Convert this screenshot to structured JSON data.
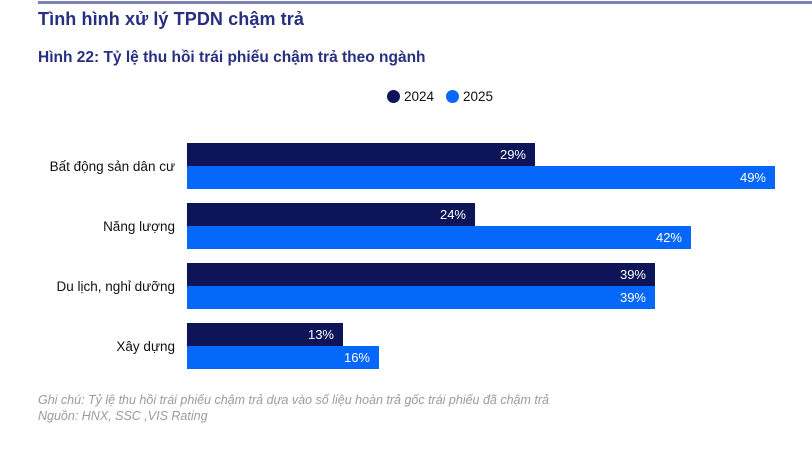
{
  "page": {
    "title": "Tình hình xử lý TPDN chậm trả",
    "figure_title": "Hình 22: Tỷ lệ thu hồi trái phiếu chậm trả theo ngành",
    "note": "Ghi chú: Tỷ lệ thu hồi trái phiếu chậm trả dựa vào số liệu hoàn trả gốc trái phiếu đã chậm trả",
    "source": "Nguồn: HNX, SSC ,VIS Rating"
  },
  "colors": {
    "heading": "#262f80",
    "top_rule": "#7e83b4",
    "series_2024": "#0d1457",
    "series_2025": "#0667fb",
    "bar_value_text": "#ffffff",
    "note_text": "#9b9b9b"
  },
  "chart_data": {
    "type": "bar",
    "orientation": "horizontal",
    "title": "Hình 22: Tỷ lệ thu hồi trái phiếu chậm trả theo ngành",
    "categories": [
      "Bất động sản dân cư",
      "Năng lượng",
      "Du lịch, nghỉ dưỡng",
      "Xây dựng"
    ],
    "series": [
      {
        "name": "2024",
        "color": "#0d1457",
        "values": [
          29,
          24,
          39,
          13
        ]
      },
      {
        "name": "2025",
        "color": "#0667fb",
        "values": [
          49,
          42,
          39,
          16
        ]
      }
    ],
    "value_suffix": "%",
    "xlim": [
      0,
      49
    ],
    "grid": false,
    "axes_visible": false,
    "value_labels": "inside-end",
    "legend_position": "top-center"
  }
}
